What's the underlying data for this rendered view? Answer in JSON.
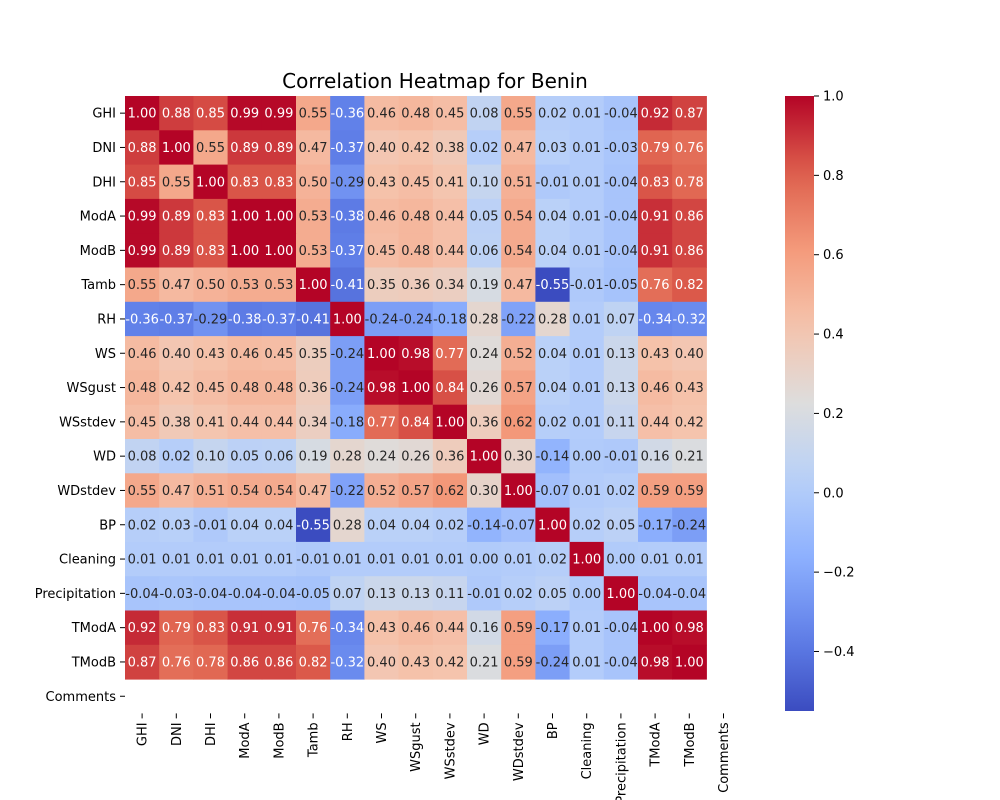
{
  "chart_data": {
    "type": "heatmap",
    "title": "Correlation Heatmap for Benin",
    "colormap": "coolwarm",
    "vmin": -0.55,
    "vmax": 1.0,
    "row_labels": [
      "GHI",
      "DNI",
      "DHI",
      "ModA",
      "ModB",
      "Tamb",
      "RH",
      "WS",
      "WSgust",
      "WSstdev",
      "WD",
      "WDstdev",
      "BP",
      "Cleaning",
      "Precipitation",
      "TModA",
      "TModB",
      "Comments"
    ],
    "col_labels": [
      "GHI",
      "DNI",
      "DHI",
      "ModA",
      "ModB",
      "Tamb",
      "RH",
      "WS",
      "WSgust",
      "WSstdev",
      "WD",
      "WDstdev",
      "BP",
      "Cleaning",
      "Precipitation",
      "TModA",
      "TModB",
      "Comments"
    ],
    "values": [
      [
        1.0,
        0.88,
        0.85,
        0.99,
        0.99,
        0.55,
        -0.36,
        0.46,
        0.48,
        0.45,
        0.08,
        0.55,
        0.02,
        0.01,
        -0.04,
        0.92,
        0.87,
        null
      ],
      [
        0.88,
        1.0,
        0.55,
        0.89,
        0.89,
        0.47,
        -0.37,
        0.4,
        0.42,
        0.38,
        0.02,
        0.47,
        0.03,
        0.01,
        -0.03,
        0.79,
        0.76,
        null
      ],
      [
        0.85,
        0.55,
        1.0,
        0.83,
        0.83,
        0.5,
        -0.29,
        0.43,
        0.45,
        0.41,
        0.1,
        0.51,
        -0.01,
        0.01,
        -0.04,
        0.83,
        0.78,
        null
      ],
      [
        0.99,
        0.89,
        0.83,
        1.0,
        1.0,
        0.53,
        -0.38,
        0.46,
        0.48,
        0.44,
        0.05,
        0.54,
        0.04,
        0.01,
        -0.04,
        0.91,
        0.86,
        null
      ],
      [
        0.99,
        0.89,
        0.83,
        1.0,
        1.0,
        0.53,
        -0.37,
        0.45,
        0.48,
        0.44,
        0.06,
        0.54,
        0.04,
        0.01,
        -0.04,
        0.91,
        0.86,
        null
      ],
      [
        0.55,
        0.47,
        0.5,
        0.53,
        0.53,
        1.0,
        -0.41,
        0.35,
        0.36,
        0.34,
        0.19,
        0.47,
        -0.55,
        -0.01,
        -0.05,
        0.76,
        0.82,
        null
      ],
      [
        -0.36,
        -0.37,
        -0.29,
        -0.38,
        -0.37,
        -0.41,
        1.0,
        -0.24,
        -0.24,
        -0.18,
        0.28,
        -0.22,
        0.28,
        0.01,
        0.07,
        -0.34,
        -0.32,
        null
      ],
      [
        0.46,
        0.4,
        0.43,
        0.46,
        0.45,
        0.35,
        -0.24,
        1.0,
        0.98,
        0.77,
        0.24,
        0.52,
        0.04,
        0.01,
        0.13,
        0.43,
        0.4,
        null
      ],
      [
        0.48,
        0.42,
        0.45,
        0.48,
        0.48,
        0.36,
        -0.24,
        0.98,
        1.0,
        0.84,
        0.26,
        0.57,
        0.04,
        0.01,
        0.13,
        0.46,
        0.43,
        null
      ],
      [
        0.45,
        0.38,
        0.41,
        0.44,
        0.44,
        0.34,
        -0.18,
        0.77,
        0.84,
        1.0,
        0.36,
        0.62,
        0.02,
        0.01,
        0.11,
        0.44,
        0.42,
        null
      ],
      [
        0.08,
        0.02,
        0.1,
        0.05,
        0.06,
        0.19,
        0.28,
        0.24,
        0.26,
        0.36,
        1.0,
        0.3,
        -0.14,
        0.0,
        -0.01,
        0.16,
        0.21,
        null
      ],
      [
        0.55,
        0.47,
        0.51,
        0.54,
        0.54,
        0.47,
        -0.22,
        0.52,
        0.57,
        0.62,
        0.3,
        1.0,
        -0.07,
        0.01,
        0.02,
        0.59,
        0.59,
        null
      ],
      [
        0.02,
        0.03,
        -0.01,
        0.04,
        0.04,
        -0.55,
        0.28,
        0.04,
        0.04,
        0.02,
        -0.14,
        -0.07,
        1.0,
        0.02,
        0.05,
        -0.17,
        -0.24,
        null
      ],
      [
        0.01,
        0.01,
        0.01,
        0.01,
        0.01,
        -0.01,
        0.01,
        0.01,
        0.01,
        0.01,
        0.0,
        0.01,
        0.02,
        1.0,
        -0.0,
        0.01,
        0.01,
        null
      ],
      [
        -0.04,
        -0.03,
        -0.04,
        -0.04,
        -0.04,
        -0.05,
        0.07,
        0.13,
        0.13,
        0.11,
        -0.01,
        0.02,
        0.05,
        -0.0,
        1.0,
        -0.04,
        -0.04,
        null
      ],
      [
        0.92,
        0.79,
        0.83,
        0.91,
        0.91,
        0.76,
        -0.34,
        0.43,
        0.46,
        0.44,
        0.16,
        0.59,
        -0.17,
        0.01,
        -0.04,
        1.0,
        0.98,
        null
      ],
      [
        0.87,
        0.76,
        0.78,
        0.86,
        0.86,
        0.82,
        -0.32,
        0.4,
        0.43,
        0.42,
        0.21,
        0.59,
        -0.24,
        0.01,
        -0.04,
        0.98,
        1.0,
        null
      ],
      [
        null,
        null,
        null,
        null,
        null,
        null,
        null,
        null,
        null,
        null,
        null,
        null,
        null,
        null,
        null,
        null,
        null,
        null
      ]
    ],
    "colorbar": {
      "ticks": [
        1.0,
        0.8,
        0.6,
        0.4,
        0.2,
        0.0,
        -0.2,
        -0.4
      ],
      "tick_labels": [
        "1.0",
        "0.8",
        "0.6",
        "0.4",
        "0.2",
        "0.0",
        "−0.2",
        "−0.4"
      ]
    }
  }
}
